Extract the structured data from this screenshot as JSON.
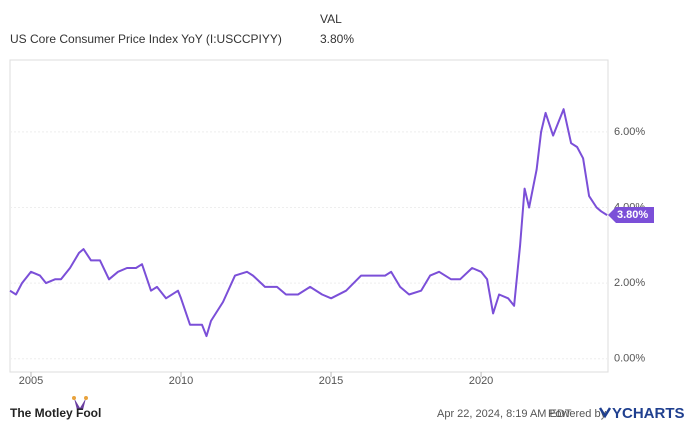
{
  "chart_data": {
    "type": "line",
    "value_header": "VAL",
    "series": [
      {
        "name": "US Core Consumer Price Index YoY (I:USCCPIYY)",
        "color": "#7b4fd8",
        "x": [
          2004.3,
          2004.5,
          2004.7,
          2005.0,
          2005.3,
          2005.5,
          2005.8,
          2006.0,
          2006.3,
          2006.6,
          2006.75,
          2007.0,
          2007.3,
          2007.6,
          2007.9,
          2008.2,
          2008.5,
          2008.7,
          2009.0,
          2009.2,
          2009.5,
          2009.9,
          2010.0,
          2010.3,
          2010.7,
          2010.85,
          2011.0,
          2011.4,
          2011.8,
          2012.2,
          2012.4,
          2012.8,
          2013.2,
          2013.5,
          2013.9,
          2014.3,
          2014.7,
          2015.0,
          2015.5,
          2016.0,
          2016.4,
          2016.8,
          2017.0,
          2017.3,
          2017.6,
          2018.0,
          2018.3,
          2018.6,
          2019.0,
          2019.3,
          2019.7,
          2020.0,
          2020.2,
          2020.4,
          2020.6,
          2020.9,
          2021.1,
          2021.3,
          2021.45,
          2021.6,
          2021.85,
          2022.0,
          2022.15,
          2022.4,
          2022.6,
          2022.75,
          2023.0,
          2023.2,
          2023.4,
          2023.6,
          2023.85,
          2024.0,
          2024.2
        ],
        "values": [
          1.8,
          1.7,
          2.0,
          2.3,
          2.2,
          2.0,
          2.1,
          2.1,
          2.4,
          2.8,
          2.9,
          2.6,
          2.6,
          2.1,
          2.3,
          2.4,
          2.4,
          2.5,
          1.8,
          1.9,
          1.6,
          1.8,
          1.6,
          0.9,
          0.9,
          0.6,
          1.0,
          1.5,
          2.2,
          2.3,
          2.2,
          1.9,
          1.9,
          1.7,
          1.7,
          1.9,
          1.7,
          1.6,
          1.8,
          2.2,
          2.2,
          2.2,
          2.3,
          1.9,
          1.7,
          1.8,
          2.2,
          2.3,
          2.1,
          2.1,
          2.4,
          2.3,
          2.1,
          1.2,
          1.7,
          1.6,
          1.4,
          3.0,
          4.5,
          4.0,
          5.0,
          6.0,
          6.5,
          5.9,
          6.3,
          6.6,
          5.7,
          5.6,
          5.3,
          4.3,
          4.0,
          3.9,
          3.8
        ],
        "value_labels": [
          null,
          null,
          null,
          null,
          null,
          null,
          null,
          null,
          null,
          null,
          null,
          null,
          null,
          null,
          null,
          null,
          null,
          null,
          null,
          null,
          null,
          null,
          null,
          null,
          null,
          null,
          null,
          null,
          null,
          null,
          null,
          null,
          null,
          null,
          null,
          null,
          null,
          null,
          null,
          null,
          null,
          null,
          null,
          null,
          null,
          null,
          null,
          null,
          null,
          null,
          null,
          null,
          null,
          null,
          null,
          null,
          null,
          null,
          null,
          null,
          null,
          null,
          null,
          null,
          null,
          null,
          null,
          null,
          null,
          null,
          null,
          null,
          "3.80%"
        ]
      }
    ],
    "xlim": [
      2004.3,
      2024.23
    ],
    "xticks": [
      2005,
      2010,
      2015,
      2020
    ],
    "ylim": [
      -0.35,
      7.9
    ],
    "yticks": [
      {
        "value": 0,
        "label": "0.00%"
      },
      {
        "value": 2,
        "label": "2.00%"
      },
      {
        "value": 4,
        "label": "4.00%"
      },
      {
        "value": 6,
        "label": "6.00%"
      }
    ],
    "grid": true
  },
  "footer": {
    "source": "The Motley Fool",
    "timestamp": "Apr 22, 2024, 8:19 AM EDT",
    "powered_by": "Powered by",
    "brand": "YCHARTS"
  }
}
